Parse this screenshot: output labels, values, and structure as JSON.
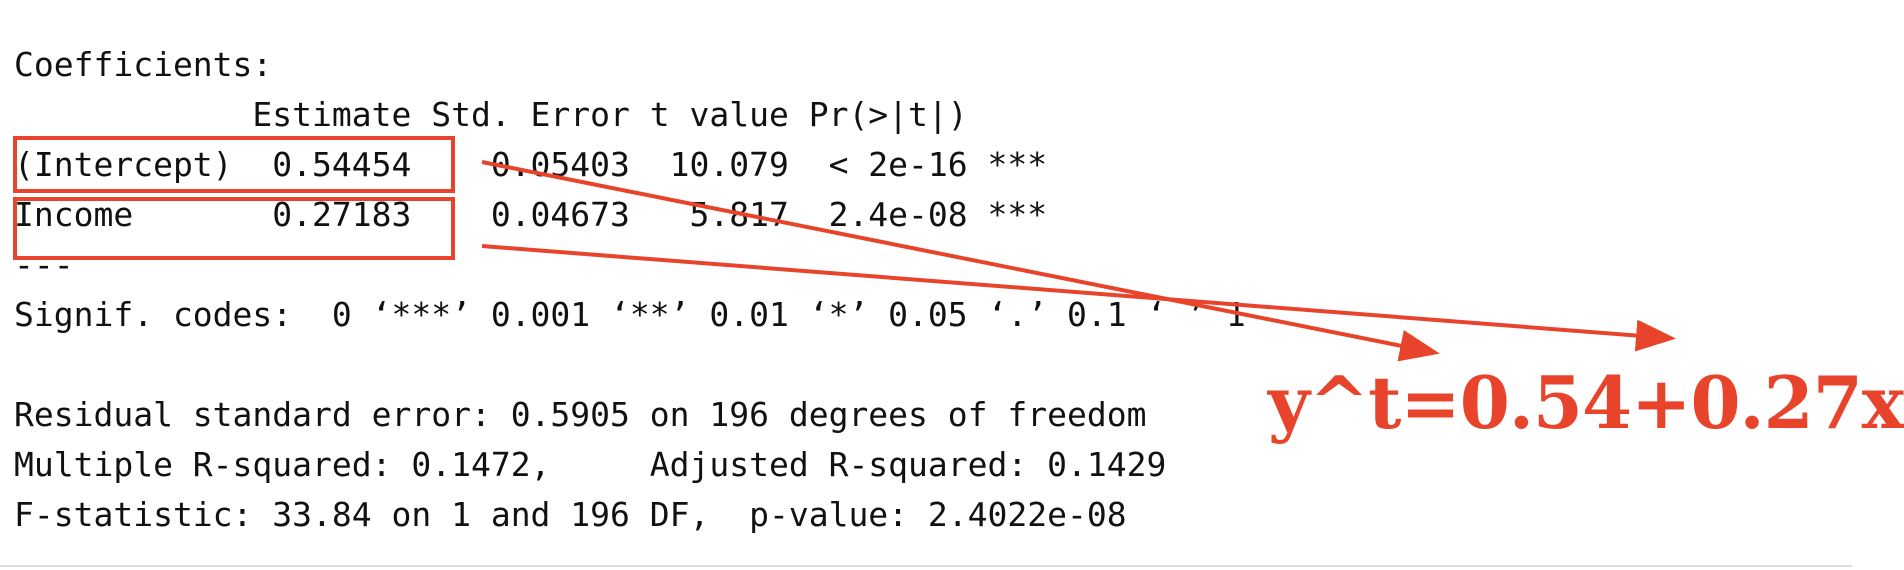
{
  "output": {
    "coefficients_header": "Coefficients:",
    "column_header": "            Estimate Std. Error t value Pr(>|t|)    ",
    "rows": [
      "(Intercept)  0.54454    0.05403  10.079  < 2e-16 ***",
      "Income       0.27183    0.04673   5.817  2.4e-08 ***"
    ],
    "separator": "---",
    "signif_codes": "Signif. codes:  0 ‘***’ 0.001 ‘**’ 0.01 ‘*’ 0.05 ‘.’ 0.1 ‘ ’ 1",
    "blank": " ",
    "residual_se": "Residual standard error: 0.5905 on 196 degrees of freedom",
    "r_squared": "Multiple R-squared: 0.1472,\tAdjusted R-squared: 0.1429 ",
    "f_statistic": "F-statistic: 33.84 on 1 and 196 DF,  p-value: 2.4022e-08"
  },
  "annotation": {
    "formula": "y^t=0.54+0.27x",
    "color": "#e8442b"
  }
}
